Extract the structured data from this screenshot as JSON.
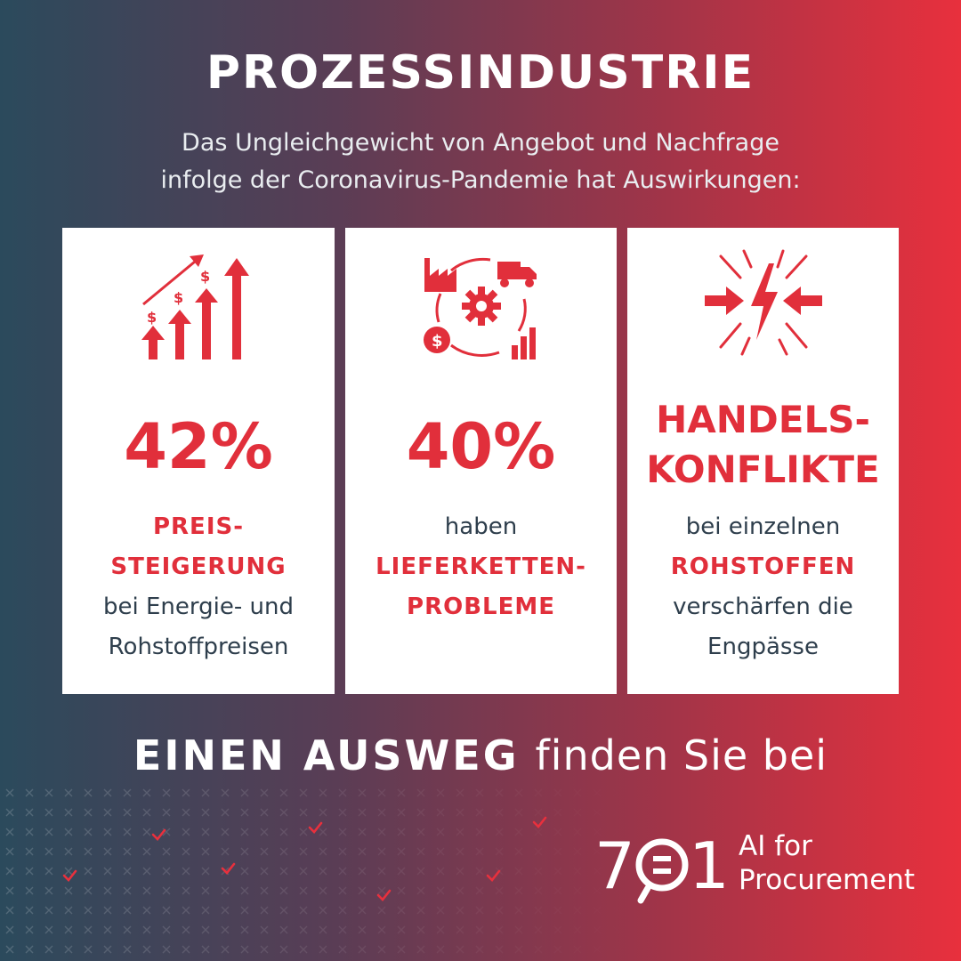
{
  "header": {
    "title": "PROZESSINDUSTRIE",
    "subtitle_line1": "Das Ungleichgewicht von Angebot und Nachfrage",
    "subtitle_line2": "infolge der Coronavirus-Pandemie hat Auswirkungen:"
  },
  "cards": [
    {
      "icon": "rising-price-arrows-icon",
      "value": "42%",
      "highlight_line1": "PREIS-",
      "highlight_line2": "STEIGERUNG",
      "text_line1": "bei Energie- und",
      "text_line2": "Rohstoffpreisen"
    },
    {
      "icon": "supply-chain-cycle-icon",
      "value": "40%",
      "text_line1": "haben",
      "highlight_line1": "LIEFERKETTEN-",
      "highlight_line2": "PROBLEME"
    },
    {
      "icon": "trade-conflict-clash-icon",
      "headline_line1": "HANDELS-",
      "headline_line2": "KONFLIKTE",
      "text_line1": "bei einzelnen",
      "highlight_line1": "ROHSTOFFEN",
      "text_line2": "verschärfen die",
      "text_line3": "Engpässe"
    }
  ],
  "footer": {
    "bold_text": "EINEN AUSWEG",
    "normal_text": "finden Sie bei",
    "logo_digits": "7=1",
    "logo_tag_line1": "AI for",
    "logo_tag_line2": "Procurement"
  },
  "colors": {
    "accent": "#e12f3b",
    "dark_text": "#2e3e4c",
    "gradient_left": "#2b4a5c",
    "gradient_right": "#e8303d"
  }
}
